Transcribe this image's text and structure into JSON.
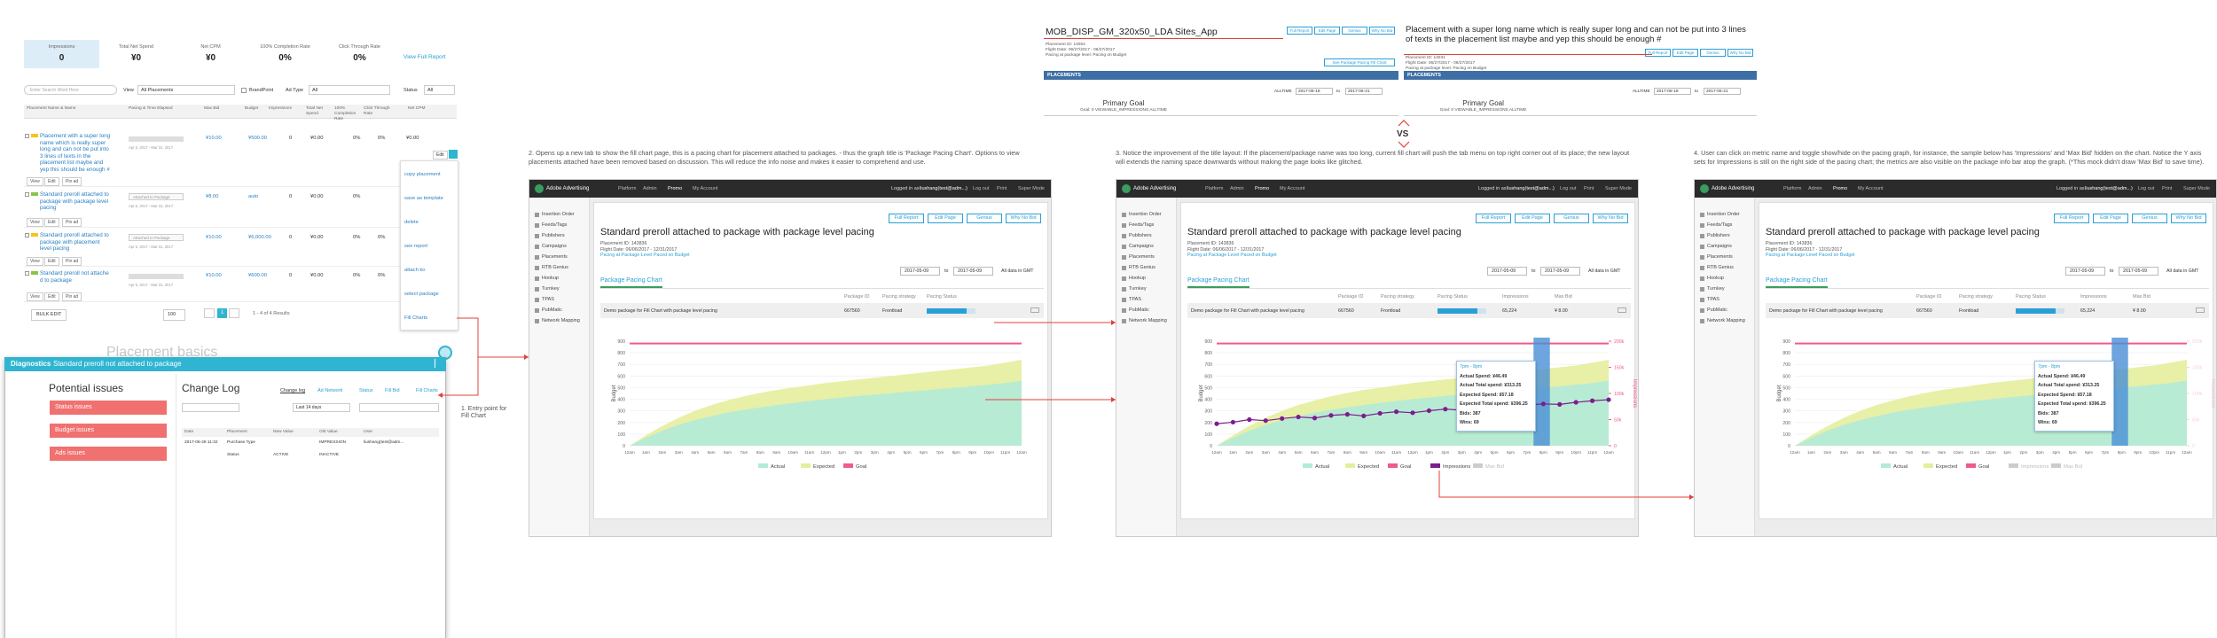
{
  "list_view": {
    "stats": [
      {
        "label": "Impressions",
        "value": "0"
      },
      {
        "label": "Total Net Spend",
        "value": "¥0"
      },
      {
        "label": "Net CPM",
        "value": "¥0"
      },
      {
        "label": "100% Completion Rate",
        "value": "0%"
      },
      {
        "label": "Click Through Rate",
        "value": "0%"
      }
    ],
    "view_full_report": "View Full Report",
    "filters": {
      "search": "Enter Search Word Here",
      "view": "View",
      "view_value": "All Placements",
      "brandpoint": "BrandPoint",
      "ad_type": "Ad Type",
      "ad_type_value": "All",
      "status": "Status",
      "status_value": "All"
    },
    "columns": [
      "Placement Name & Name",
      "Pacing & Time Elapsed",
      "Max Bid",
      "Budget",
      "Impressions",
      "Total Net Spend",
      "100% Completion Rate",
      "Click Through Rate",
      "Net CPM"
    ],
    "rows": [
      {
        "name": "Placement with a super long name which is really super long and can not be put into 3 lines of texts in the placement list maybe and yep this should be enough #",
        "dates": "Apr 5, 2017 - Mar 31, 2017",
        "cells": [
          "¥10.00",
          "¥500.00",
          "0",
          "¥0.00",
          "0%",
          "0%",
          "¥0.00"
        ],
        "actions": [
          "View",
          "Edit",
          "Pin ad"
        ]
      },
      {
        "name": "Standard preroll attached to package with package level pacing",
        "pacing_note": "Attached to Package",
        "dates": "Apr 5, 2017 - Mar 31, 2017",
        "cells": [
          "¥8.00",
          "auto",
          "0",
          "¥0.00",
          "0%"
        ],
        "actions": [
          "View",
          "Edit",
          "Pin ad"
        ]
      },
      {
        "name": "Standard preroll attached to package with placement level pacing",
        "pacing_note": "Attached to Package",
        "dates": "Apr 5, 2017 - Mar 31, 2017",
        "cells": [
          "¥10.00",
          "¥6,000.00",
          "0",
          "¥0.00",
          "0%",
          "0%"
        ],
        "actions": [
          "View",
          "Edit",
          "Pin ad"
        ]
      },
      {
        "name": "Standard preroll not attache d to package",
        "dates": "Apr 5, 2017 - Mar 31, 2017",
        "cells": [
          "¥10.00",
          "¥600.00",
          "0",
          "¥0.00",
          "0%",
          "0%"
        ],
        "actions": [
          "View",
          "Edit",
          "Pin ad"
        ]
      }
    ],
    "row_menu": {
      "button": "Edit",
      "items": [
        "copy placement",
        "save as template",
        "delete",
        "see report",
        "attach ko",
        "select package",
        "Fill Charts"
      ]
    },
    "footer": {
      "bulk_edit": "BULK EDIT",
      "page_size": "100",
      "page": "1",
      "results": "1 - 4 of 4 Results"
    },
    "background_heading": "Placement basics"
  },
  "diagnostics": {
    "label": "Diagnostics",
    "title": "Standard preroll not attached to package",
    "issues_heading": "Potential issues",
    "issues": [
      "Status issues",
      "Budget issues",
      "Ads issues"
    ],
    "log_heading": "Change Log",
    "tabs": [
      "Change log",
      "Ad Network",
      "Status",
      "Fill Bid",
      "Fill Charts"
    ],
    "filter": "Last 14 days",
    "columns": [
      "Date",
      "Placement",
      "New Value",
      "Old Value",
      "User"
    ],
    "rows": [
      [
        "2017-06-28 11:32",
        "Purchase Type",
        null,
        "IMPRESSION",
        "liushang(test@adm..."
      ],
      [
        null,
        "Status",
        "ACTIVE",
        "INACTIVE",
        null
      ]
    ]
  },
  "entry_note": "1. Entry point for Fill Chart",
  "compare": {
    "before": {
      "title": "MOB_DISP_GM_320x50_LDA Sites_App",
      "buttons": [
        "Full Report",
        "Edit Page",
        "Genius",
        "Why No Bid"
      ],
      "info": [
        "Placement ID: 14054",
        "Flight Date: 06/27/2017 - 06/27/2017",
        "Pacing at package level. Pacing on Budget"
      ],
      "link": "See Package Pacing Fill Chart",
      "bar": "PLACEMENTS",
      "range": "ALLTIME",
      "from": "2017-06-18",
      "to": "to",
      "until": "2017-06-21",
      "goal_heading": "Primary Goal",
      "goal": "Goal: 0 VIEWABLE_IMPRESSIONS ALLTIME"
    },
    "after": {
      "title": "Placement with a super long name which is really super long and can not be put into 3 lines of texts in the placement list maybe and yep this should be enough #",
      "buttons": [
        "Full Report",
        "Edit Page",
        "Genius",
        "Why No Bid"
      ],
      "info": [
        "Placement ID: 14031",
        "Flight Date: 06/27/2017 - 06/27/2017",
        "Pacing at package level. Pacing on Budget"
      ],
      "bar": "PLACEMENTS",
      "range": "ALLTIME",
      "from": "2017-06-18",
      "to": "to",
      "until": "2017-06-21",
      "goal_heading": "Primary Goal",
      "goal": "Goal: 0 VIEWABLE_IMPRESSIONS ALLTIME"
    },
    "vs": "VS"
  },
  "annotations": [
    "2. Opens up a new tab to show the fill chart page, this is a pacing chart for placement attached to packages. - thus the graph title is 'Package Pacing Chart'. Options to view placements attached have been removed based on discussion. This will reduce the info noise and makes it easier to comprehend and use.",
    "3. Notice the improvement of the title layout: If the placement/package name was too long, current fill chart will push the tab menu on top right corner out of its place; the new layout will extends the naming space downwards without making the page looks like glitched.",
    "4. User can click on metric name and toggle show/hide on the pacing graph, for instance, the sample below has 'Impressions' and 'Max Bid' hidden on the chart. Notice the Y axis sets for Impressions is still on the right side of the pacing chart; the metrics are also visible on the package info bar atop the graph. (*This mock didn't draw 'Max Bid' to save time)."
  ],
  "app_shell": {
    "logo": "Adobe Advertising",
    "nav": [
      "Platform",
      "Admin",
      "Promo",
      "My Account"
    ],
    "logged_in": "Logged in as",
    "user": "liushang(test@adm...)",
    "logout": "Log out",
    "print": "Print",
    "super_mode": "Super Mode",
    "sidebar": [
      "Insertion Order",
      "Feeds/Tags",
      "Publishers",
      "Campaigns",
      "Placements",
      "RTB Genius",
      "Hookup",
      "Turnkey",
      "TPAS",
      "PubMatic",
      "Network Mapping"
    ]
  },
  "pacing_chart": {
    "type": "area",
    "ylabel": "Budget",
    "ylim": [
      0,
      900
    ],
    "yticks": [
      0,
      100,
      200,
      300,
      400,
      500,
      600,
      700,
      800,
      900
    ],
    "categories": [
      "12am",
      "1am",
      "2am",
      "3am",
      "4am",
      "5am",
      "6am",
      "7am",
      "8am",
      "9am",
      "10am",
      "11am",
      "12pm",
      "1pm",
      "2pm",
      "3pm",
      "4pm",
      "5pm",
      "6pm",
      "7pm",
      "8pm",
      "9pm",
      "10pm",
      "11pm",
      "12am"
    ],
    "expected": {
      "color": "#e4ee9c",
      "values": [
        0,
        90,
        170,
        240,
        300,
        350,
        390,
        425,
        455,
        480,
        500,
        520,
        540,
        555,
        570,
        585,
        600,
        615,
        630,
        645,
        660,
        675,
        690,
        715,
        740
      ]
    },
    "actual": {
      "color": "#b3ead9",
      "values": [
        0,
        70,
        130,
        180,
        220,
        255,
        285,
        310,
        330,
        350,
        368,
        385,
        400,
        415,
        428,
        440,
        452,
        464,
        476,
        488,
        500,
        512,
        525,
        540,
        560
      ]
    },
    "goal": {
      "color": "#ef5a8b",
      "value": 880
    },
    "impressions": {
      "color": "#7b1d8e",
      "ylabel": "Impressions",
      "y2lim": [
        0,
        200000
      ],
      "y2ticks": [
        0,
        {
          "value": 50000,
          "label": "50k"
        },
        {
          "value": 100000,
          "label": "100k"
        },
        {
          "value": 150000,
          "label": "150k"
        },
        {
          "value": 200000,
          "label": "200k"
        }
      ],
      "values": [
        42000,
        45000,
        50000,
        48000,
        52000,
        55000,
        53000,
        58000,
        60000,
        57000,
        62000,
        65000,
        63000,
        67000,
        70000,
        68000,
        72000,
        75000,
        73000,
        78000,
        80000,
        79000,
        83000,
        86000,
        88000
      ]
    }
  },
  "panels": [
    {
      "title": "Standard preroll attached to package with package level pacing",
      "info": [
        "Placement ID: 143836",
        "Flight Date: 06/06/2017 - 12/31/2017"
      ],
      "pacing_at": "Pacing at Package Level",
      "paced_on": "Paced on Budget",
      "buttons": [
        "Full Report",
        "Edit Page",
        "Genius",
        "Why No Bid"
      ],
      "date_from": "2017-05-09",
      "to": "to",
      "date_to": "2017-05-09",
      "gmt": "All data in GMT",
      "tab": "Package Pacing Chart",
      "table_headers": [
        "Package ID",
        "Pacing strategy",
        "Pacing Status"
      ],
      "table_row": [
        "Demo package for Fill Chart with package level pacing",
        "667560",
        "Frontload"
      ],
      "legend": [
        {
          "name": "Actual",
          "color": "#b3ead9",
          "visible": true
        },
        {
          "name": "Expected",
          "color": "#e4ee9c",
          "visible": true
        },
        {
          "name": "Goal",
          "color": "#ef5a8b",
          "visible": true
        }
      ],
      "impressions_axis": false,
      "impressions_visible": false
    },
    {
      "title": "Standard preroll attached to package with package level pacing",
      "info": [
        "Placement ID: 143836",
        "Flight Date: 06/06/2017 - 12/31/2017"
      ],
      "pacing_at": "Pacing at Package Level",
      "paced_on": "Paced on Budget",
      "buttons": [
        "Full Report",
        "Edit Page",
        "Genius",
        "Why No Bid"
      ],
      "date_from": "2017-05-09",
      "to": "to",
      "date_to": "2017-05-09",
      "gmt": "All data in GMT",
      "tab": "Package Pacing Chart",
      "table_headers": [
        "Package ID",
        "Pacing strategy",
        "Pacing Status",
        "Impressions",
        "Max Bid"
      ],
      "table_row": [
        "Demo package for Fill Chart with package level pacing",
        "667560",
        "Frontload",
        "65,224",
        "¥ 8.00"
      ],
      "legend": [
        {
          "name": "Actual",
          "color": "#b3ead9",
          "visible": true
        },
        {
          "name": "Expected",
          "color": "#e4ee9c",
          "visible": true
        },
        {
          "name": "Goal",
          "color": "#ef5a8b",
          "visible": true
        },
        {
          "name": "Impressions",
          "color": "#7b1d8e",
          "visible": true
        },
        {
          "name": "Max Bid",
          "color": "#cccccc",
          "visible": false
        }
      ],
      "tooltip": [
        "7pm - 8pm",
        "Actual Spend: ¥46.49",
        "Actual Total spend: ¥313.25",
        "Expected Spend: ¥57.18",
        "Expected Total spend: ¥396.25",
        "Bids: 387",
        "Wins: 69"
      ],
      "impressions_axis": true,
      "impressions_visible": true
    },
    {
      "title": "Standard preroll attached to package with package level pacing",
      "info": [
        "Placement ID: 143836",
        "Flight Date: 06/06/2017 - 12/31/2017"
      ],
      "pacing_at": "Pacing at Package Level",
      "paced_on": "Paced on Budget",
      "buttons": [
        "Full Report",
        "Edit Page",
        "Genius",
        "Why No Bid"
      ],
      "date_from": "2017-05-09",
      "to": "to",
      "date_to": "2017-05-09",
      "gmt": "All data in GMT",
      "tab": "Package Pacing Chart",
      "table_headers": [
        "Package ID",
        "Pacing strategy",
        "Pacing Status",
        "Impressions",
        "Max Bid"
      ],
      "table_row": [
        "Demo package for Fill Chart with package level pacing",
        "667560",
        "Frontload",
        "65,224",
        "¥ 8.00"
      ],
      "legend": [
        {
          "name": "Actual",
          "color": "#b3ead9",
          "visible": true
        },
        {
          "name": "Expected",
          "color": "#e4ee9c",
          "visible": true
        },
        {
          "name": "Goal",
          "color": "#ef5a8b",
          "visible": true
        },
        {
          "name": "Impressions",
          "color": "#7b1d8e",
          "visible": false
        },
        {
          "name": "Max Bid",
          "color": "#cccccc",
          "visible": false
        }
      ],
      "tooltip": [
        "7pm - 8pm",
        "Actual Spend: ¥46.49",
        "Actual Total spend: ¥313.25",
        "Expected Spend: ¥57.18",
        "Expected Total spend: ¥396.25",
        "Bids: 387",
        "Wins: 69"
      ],
      "impressions_axis": true,
      "impressions_visible": false
    }
  ]
}
